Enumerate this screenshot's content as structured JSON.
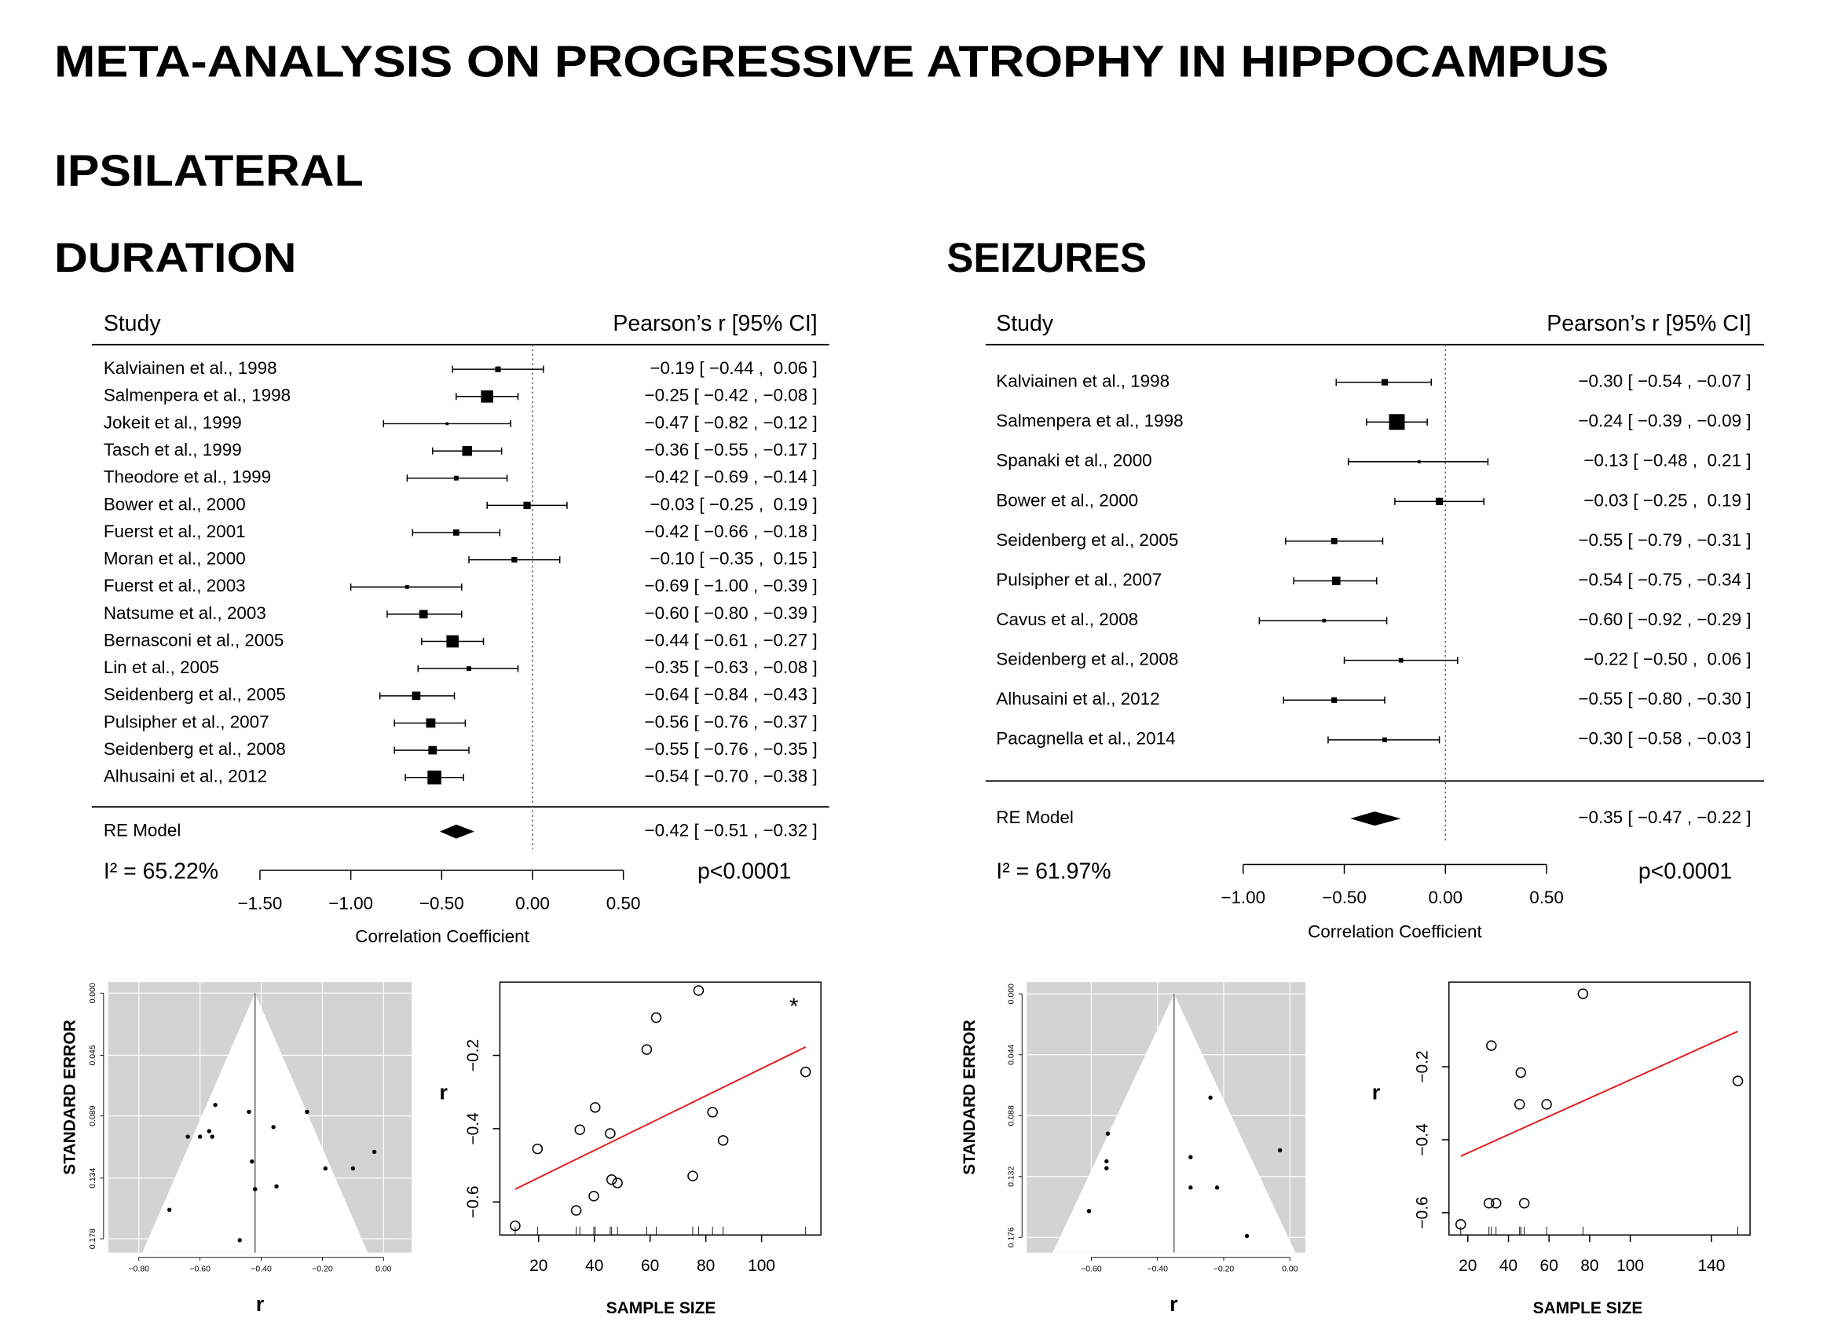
{
  "header": {
    "title": "META-ANALYSIS ON PROGRESSIVE ATROPHY IN HIPPOCAMPUS",
    "subtitle": "IPSILATERAL"
  },
  "chart_data": [
    {
      "type": "forest",
      "title": "DURATION",
      "study_header": "Study",
      "effect_header": "Pearson’s r [95% CI]",
      "categories": [
        "Kalviainen et al., 1998",
        "Salmenpera et al., 1998",
        "Jokeit et al., 1999",
        "Tasch et al., 1999",
        "Theodore et al., 1999",
        "Bower et al., 2000",
        "Fuerst et al., 2001",
        "Moran et al., 2000",
        "Fuerst et al., 2003",
        "Natsume et al., 2003",
        "Bernasconi et al., 2005",
        "Lin et al., 2005",
        "Seidenberg et al., 2005",
        "Pulsipher et al., 2007",
        "Seidenberg et al., 2008",
        "Alhusaini et al., 2012"
      ],
      "values": [
        -0.19,
        -0.25,
        -0.47,
        -0.36,
        -0.42,
        -0.03,
        -0.42,
        -0.1,
        -0.69,
        -0.6,
        -0.44,
        -0.35,
        -0.64,
        -0.56,
        -0.55,
        -0.54
      ],
      "lower": [
        -0.44,
        -0.42,
        -0.82,
        -0.55,
        -0.69,
        -0.25,
        -0.66,
        -0.35,
        -1.0,
        -0.8,
        -0.61,
        -0.63,
        -0.84,
        -0.76,
        -0.76,
        -0.7
      ],
      "upper": [
        0.06,
        -0.08,
        -0.12,
        -0.17,
        -0.14,
        0.19,
        -0.18,
        0.15,
        -0.39,
        -0.39,
        -0.27,
        -0.08,
        -0.43,
        -0.37,
        -0.35,
        -0.38
      ],
      "value_labels": [
        "−0.19 [ −0.44 ,  0.06 ]",
        "−0.25 [ −0.42 , −0.08 ]",
        "−0.47 [ −0.82 , −0.12 ]",
        "−0.36 [ −0.55 , −0.17 ]",
        "−0.42 [ −0.69 , −0.14 ]",
        "−0.03 [ −0.25 ,  0.19 ]",
        "−0.42 [ −0.66 , −0.18 ]",
        "−0.10 [ −0.35 ,  0.15 ]",
        "−0.69 [ −1.00 , −0.39 ]",
        "−0.60 [ −0.80 , −0.39 ]",
        "−0.44 [ −0.61 , −0.27 ]",
        "−0.35 [ −0.63 , −0.08 ]",
        "−0.64 [ −0.84 , −0.43 ]",
        "−0.56 [ −0.76 , −0.37 ]",
        "−0.55 [ −0.76 , −0.35 ]",
        "−0.54 [ −0.70 , −0.38 ]"
      ],
      "summary": {
        "name": "RE Model",
        "value": -0.42,
        "lower": -0.51,
        "upper": -0.32,
        "value_label": "−0.42 [ −0.51 , −0.32 ]"
      },
      "heterogeneity": "I² = 65.22%",
      "p_value": "p<0.0001",
      "xlabel": "Correlation Coefficient",
      "xlim": [
        -1.5,
        0.5
      ],
      "xticks": [
        {
          "value": -1.5,
          "label": "−1.50"
        },
        {
          "value": -1.0,
          "label": "−1.00"
        },
        {
          "value": -0.5,
          "label": "−0.50"
        },
        {
          "value": 0,
          "label": "0.00"
        },
        {
          "value": 0.5,
          "label": "0.50"
        }
      ],
      "color": "#000000"
    },
    {
      "type": "funnel",
      "xlabel": "r",
      "ylabel": "STANDARD ERROR",
      "x": [
        -0.7,
        -0.64,
        -0.6,
        -0.57,
        -0.56,
        -0.55,
        -0.47,
        -0.44,
        -0.43,
        -0.42,
        -0.36,
        -0.35,
        -0.25,
        -0.19,
        -0.1,
        -0.03
      ],
      "y": [
        0.157,
        0.104,
        0.104,
        0.1,
        0.104,
        0.081,
        0.179,
        0.086,
        0.122,
        0.142,
        0.097,
        0.14,
        0.086,
        0.127,
        0.127,
        0.115
      ],
      "center": -0.42,
      "xlim": [
        -0.9,
        0.092
      ],
      "ylim": [
        0.188,
        -0.008
      ],
      "xticks": [
        {
          "value": -0.8,
          "label": "−0.80"
        },
        {
          "value": -0.6,
          "label": "−0.60"
        },
        {
          "value": -0.4,
          "label": "−0.40"
        },
        {
          "value": -0.2,
          "label": "−0.20"
        },
        {
          "value": 0,
          "label": "0.00"
        }
      ],
      "yticks": [
        {
          "value": 0,
          "label": "0.000"
        },
        0.045,
        0.089,
        0.134,
        0.178
      ],
      "color": "#000000",
      "background": "#d3d3d3",
      "grid": true
    },
    {
      "type": "scatter",
      "xlabel": "SAMPLE SIZE",
      "ylabel": "r",
      "annotation": "*",
      "x": [
        11.6,
        19.6,
        33.5,
        34.8,
        40.3,
        39.8,
        45.7,
        46.2,
        48.3,
        58.8,
        62.2,
        75.3,
        77.4,
        82.4,
        86.2,
        115.8
      ],
      "y": [
        -0.665,
        -0.455,
        -0.623,
        -0.403,
        -0.342,
        -0.584,
        -0.413,
        -0.539,
        -0.548,
        -0.184,
        -0.097,
        -0.529,
        -0.023,
        -0.355,
        -0.432,
        -0.245
      ],
      "fit": {
        "x": [
          11.6,
          115.8
        ],
        "y": [
          -0.565,
          -0.177
        ],
        "color": "#e41a1c"
      },
      "xlim": [
        6.1,
        121.3
      ],
      "ylim": [
        -0.69,
        0.0
      ],
      "xticks": [
        20,
        40,
        60,
        80,
        100
      ],
      "yticks": [
        {
          "value": -0.6,
          "label": "−0.6"
        },
        {
          "value": -0.4,
          "label": "−0.4"
        },
        {
          "value": -0.2,
          "label": "−0.2"
        }
      ],
      "color": "#000000"
    },
    {
      "type": "forest",
      "title": "SEIZURES",
      "study_header": "Study",
      "effect_header": "Pearson’s r [95% CI]",
      "categories": [
        "Kalviainen et al., 1998",
        "Salmenpera et al., 1998",
        "Spanaki et al., 2000",
        "Bower et al., 2000",
        "Seidenberg et al., 2005",
        "Pulsipher et al., 2007",
        "Cavus et al., 2008",
        "Seidenberg et al., 2008",
        "Alhusaini et al., 2012",
        "Pacagnella et al., 2014"
      ],
      "values": [
        -0.3,
        -0.24,
        -0.13,
        -0.03,
        -0.55,
        -0.54,
        -0.6,
        -0.22,
        -0.55,
        -0.3
      ],
      "lower": [
        -0.54,
        -0.39,
        -0.48,
        -0.25,
        -0.79,
        -0.75,
        -0.92,
        -0.5,
        -0.8,
        -0.58
      ],
      "upper": [
        -0.07,
        -0.09,
        0.21,
        0.19,
        -0.31,
        -0.34,
        -0.29,
        0.06,
        -0.3,
        -0.03
      ],
      "value_labels": [
        "−0.30 [ −0.54 , −0.07 ]",
        "−0.24 [ −0.39 , −0.09 ]",
        "−0.13 [ −0.48 ,  0.21 ]",
        "−0.03 [ −0.25 ,  0.19 ]",
        "−0.55 [ −0.79 , −0.31 ]",
        "−0.54 [ −0.75 , −0.34 ]",
        "−0.60 [ −0.92 , −0.29 ]",
        "−0.22 [ −0.50 ,  0.06 ]",
        "−0.55 [ −0.80 , −0.30 ]",
        "−0.30 [ −0.58 , −0.03 ]"
      ],
      "summary": {
        "name": "RE Model",
        "value": -0.35,
        "lower": -0.47,
        "upper": -0.22,
        "value_label": "−0.35 [ −0.47 , −0.22 ]"
      },
      "heterogeneity": "I² = 61.97%",
      "p_value": "p<0.0001",
      "xlabel": "Correlation Coefficient",
      "xlim": [
        -1.0,
        0.5
      ],
      "xticks": [
        {
          "value": -1.0,
          "label": "−1.00"
        },
        {
          "value": -0.5,
          "label": "−0.50"
        },
        {
          "value": 0,
          "label": "0.00"
        },
        {
          "value": 0.5,
          "label": "0.50"
        }
      ],
      "color": "#000000"
    },
    {
      "type": "funnel",
      "xlabel": "r",
      "ylabel": "STANDARD ERROR",
      "x": [
        -0.607,
        -0.55,
        -0.554,
        -0.554,
        -0.3,
        -0.3,
        -0.24,
        -0.22,
        -0.13,
        -0.03
      ],
      "y": [
        0.157,
        0.101,
        0.121,
        0.126,
        0.118,
        0.14,
        0.075,
        0.14,
        0.175,
        0.113
      ],
      "center": -0.35,
      "xlim": [
        -0.795,
        0.047
      ],
      "ylim": [
        0.187,
        -0.0085
      ],
      "xticks": [
        {
          "value": -0.6,
          "label": "−0.60"
        },
        {
          "value": -0.4,
          "label": "−0.40"
        },
        {
          "value": -0.2,
          "label": "−0.20"
        },
        {
          "value": 0,
          "label": "0.00"
        }
      ],
      "yticks": [
        {
          "value": 0,
          "label": "0.000"
        },
        0.044,
        0.088,
        0.132,
        0.176
      ],
      "color": "#000000",
      "background": "#d3d3d3",
      "grid": true
    },
    {
      "type": "scatter",
      "xlabel": "SAMPLE SIZE",
      "ylabel": "r",
      "x": [
        16.5,
        31.6,
        30.4,
        33.9,
        45.5,
        46.1,
        47.8,
        58.8,
        76.7,
        153
      ],
      "y": [
        -0.632,
        -0.142,
        -0.574,
        -0.574,
        -0.303,
        -0.216,
        -0.574,
        -0.303,
        0.0,
        -0.239
      ],
      "fit": {
        "x": [
          16.5,
          153
        ],
        "y": [
          -0.445,
          -0.103
        ],
        "color": "#e41a1c"
      },
      "xlim": [
        10.7,
        159
      ],
      "ylim": [
        -0.661,
        0.032
      ],
      "xticks": [
        20,
        40,
        60,
        80,
        100,
        140
      ],
      "yticks": [
        {
          "value": -0.6,
          "label": "−0.6"
        },
        {
          "value": -0.4,
          "label": "−0.4"
        },
        {
          "value": -0.2,
          "label": "−0.2"
        }
      ],
      "color": "#000000"
    }
  ]
}
